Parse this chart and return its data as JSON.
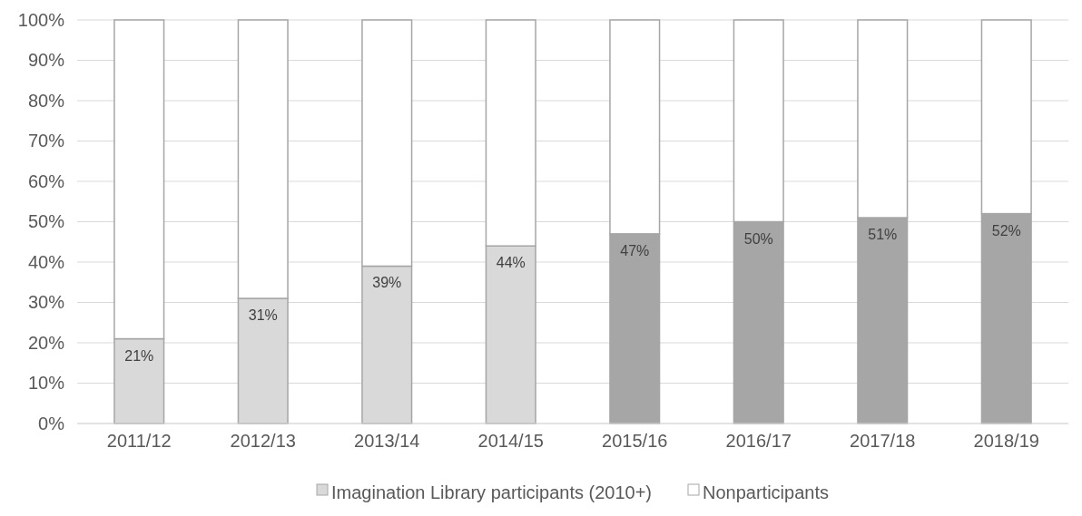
{
  "chart_data": {
    "type": "bar",
    "stacked": true,
    "categories": [
      "2011/12",
      "2012/13",
      "2013/14",
      "2014/15",
      "2015/16",
      "2016/17",
      "2017/18",
      "2018/19"
    ],
    "series": [
      {
        "name": "Imagination Library participants (2010+)",
        "color": "#d9d9d9",
        "colors": [
          "#d9d9d9",
          "#d9d9d9",
          "#d9d9d9",
          "#d9d9d9",
          "#a6a6a6",
          "#a6a6a6",
          "#a6a6a6",
          "#a6a6a6"
        ],
        "values": [
          21,
          31,
          39,
          44,
          47,
          50,
          51,
          52
        ],
        "value_labels": [
          "21%",
          "31%",
          "39%",
          "44%",
          "47%",
          "50%",
          "51%",
          "52%"
        ]
      },
      {
        "name": "Nonparticipants",
        "color": "#ffffff",
        "values": [
          79,
          69,
          61,
          56,
          53,
          50,
          49,
          48
        ]
      }
    ],
    "ylim": [
      0,
      100
    ],
    "yticks": [
      {
        "value": 0,
        "label": "0%"
      },
      {
        "value": 10,
        "label": "10%"
      },
      {
        "value": 20,
        "label": "20%"
      },
      {
        "value": 30,
        "label": "30%"
      },
      {
        "value": 40,
        "label": "40%"
      },
      {
        "value": 50,
        "label": "50%"
      },
      {
        "value": 60,
        "label": "60%"
      },
      {
        "value": 70,
        "label": "70%"
      },
      {
        "value": 80,
        "label": "80%"
      },
      {
        "value": 90,
        "label": "90%"
      },
      {
        "value": 100,
        "label": "100%"
      }
    ],
    "grid": "y",
    "legend": "bottom"
  }
}
